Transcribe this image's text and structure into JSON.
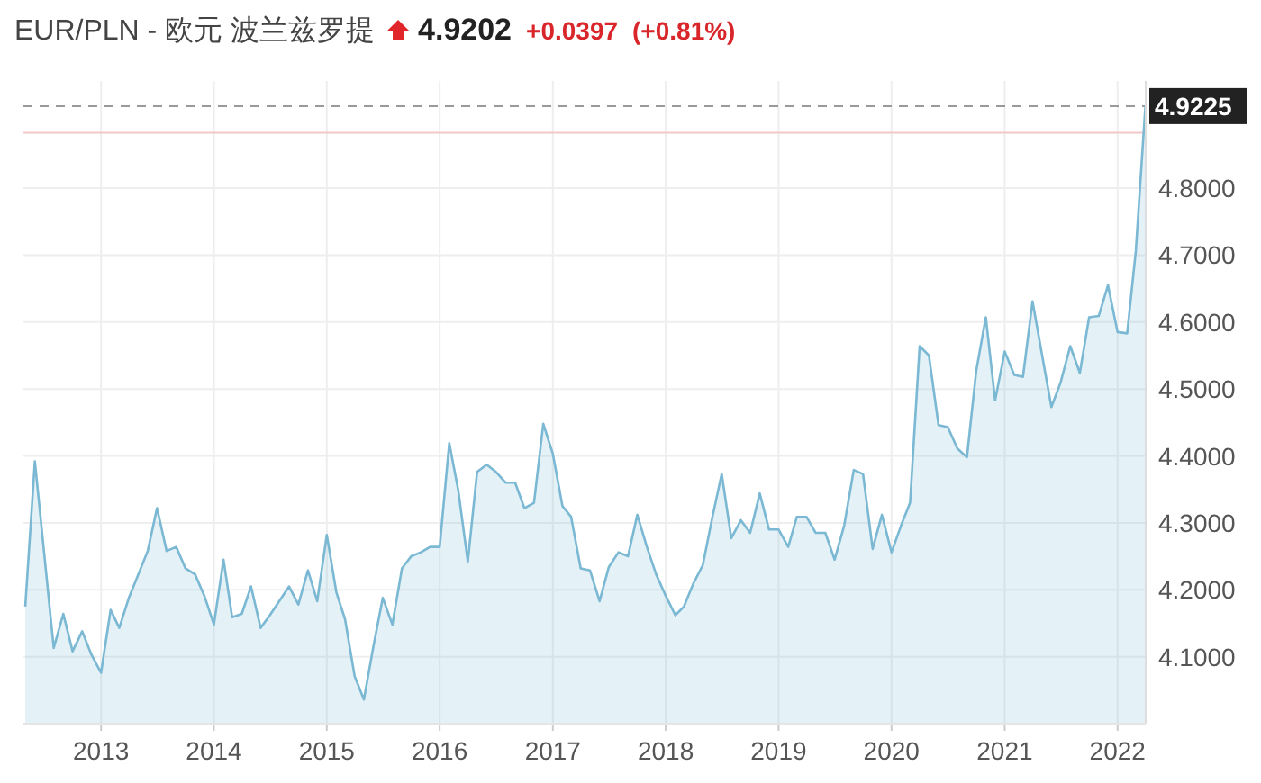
{
  "chart_data": {
    "type": "area",
    "title": "EUR/PLN - 欧元 波兰兹罗提",
    "annotations": [
      "4.9202",
      "+0.0397",
      "(+0.81%)"
    ],
    "x": [
      "2012-05",
      "2012-06",
      "2012-08",
      "2012-09",
      "2012-10",
      "2012-11",
      "2012-12",
      "2013-01",
      "2013-02",
      "2013-03",
      "2013-04",
      "2013-06",
      "2013-07",
      "2013-08",
      "2013-09",
      "2013-10",
      "2013-11",
      "2013-12",
      "2014-01",
      "2014-02",
      "2014-03",
      "2014-04",
      "2014-05",
      "2014-06",
      "2014-07",
      "2014-09",
      "2014-10",
      "2014-11",
      "2014-12",
      "2015-01",
      "2015-02",
      "2015-03",
      "2015-04",
      "2015-05",
      "2015-06",
      "2015-07",
      "2015-08",
      "2015-09",
      "2015-10",
      "2015-11",
      "2015-12",
      "2016-01",
      "2016-02",
      "2016-03",
      "2016-04",
      "2016-05",
      "2016-06",
      "2016-07",
      "2016-08",
      "2016-09",
      "2016-10",
      "2016-11",
      "2016-12",
      "2017-01",
      "2017-02",
      "2017-03",
      "2017-04",
      "2017-05",
      "2017-06",
      "2017-07",
      "2017-08",
      "2017-09",
      "2017-10",
      "2017-11",
      "2017-12",
      "2018-01",
      "2018-02",
      "2018-03",
      "2018-04",
      "2018-05",
      "2018-06",
      "2018-07",
      "2018-08",
      "2018-09",
      "2018-10",
      "2018-11",
      "2018-12",
      "2019-01",
      "2019-02",
      "2019-03",
      "2019-04",
      "2019-05",
      "2019-06",
      "2019-07",
      "2019-08",
      "2019-09",
      "2019-10",
      "2019-11",
      "2019-12",
      "2020-01",
      "2020-02",
      "2020-03",
      "2020-04",
      "2020-05",
      "2020-06",
      "2020-07",
      "2020-08",
      "2020-09",
      "2020-10",
      "2020-11",
      "2020-12",
      "2021-01",
      "2021-02",
      "2021-03",
      "2021-04",
      "2021-05",
      "2021-06",
      "2021-07",
      "2021-08",
      "2021-09",
      "2021-10",
      "2021-11",
      "2021-12",
      "2022-01",
      "2022-02",
      "2022-03",
      "2022-04"
    ],
    "series": [
      {
        "color": "#7ab8d3",
        "values": [
          4.175,
          4.392,
          4.113,
          4.164,
          4.108,
          4.138,
          4.103,
          4.076,
          4.17,
          4.143,
          4.188,
          4.258,
          4.322,
          4.258,
          4.264,
          4.232,
          4.223,
          4.191,
          4.148,
          4.245,
          4.159,
          4.164,
          4.205,
          4.143,
          4.162,
          4.205,
          4.178,
          4.229,
          4.183,
          4.282,
          4.196,
          4.156,
          4.071,
          4.036,
          4.116,
          4.188,
          4.148,
          4.232,
          4.25,
          4.256,
          4.264,
          4.264,
          4.419,
          4.349,
          4.242,
          4.376,
          4.387,
          4.376,
          4.36,
          4.36,
          4.322,
          4.33,
          4.448,
          4.403,
          4.325,
          4.309,
          4.232,
          4.229,
          4.183,
          4.234,
          4.256,
          4.25,
          4.312,
          4.264,
          4.223,
          4.191,
          4.162,
          4.175,
          4.21,
          4.237,
          4.309,
          4.373,
          4.277,
          4.304,
          4.285,
          4.344,
          4.29,
          4.29,
          4.264,
          4.309,
          4.309,
          4.285,
          4.285,
          4.245,
          4.296,
          4.379,
          4.373,
          4.261,
          4.312,
          4.256,
          4.296,
          4.33,
          4.564,
          4.55,
          4.446,
          4.443,
          4.411,
          4.398,
          4.527,
          4.607,
          4.483,
          4.556,
          4.521,
          4.518,
          4.631,
          4.553,
          4.473,
          4.51,
          4.564,
          4.524,
          4.607,
          4.609,
          4.655,
          4.585,
          4.583,
          4.706,
          4.9225
        ]
      }
    ],
    "xlim": [
      "2012-04-25",
      "2022-04-02"
    ],
    "xticks": [
      "2013",
      "2014",
      "2015",
      "2016",
      "2017",
      "2018",
      "2019",
      "2020",
      "2021",
      "2022"
    ],
    "ylim": [
      4.0,
      4.96
    ],
    "yticks": [
      {
        "value": 4.1,
        "label": "4.1000"
      },
      {
        "value": 4.2,
        "label": "4.2000"
      },
      {
        "value": 4.3,
        "label": "4.3000"
      },
      {
        "value": 4.4,
        "label": "4.4000"
      },
      {
        "value": 4.5,
        "label": "4.5000"
      },
      {
        "value": 4.6,
        "label": "4.6000"
      },
      {
        "value": 4.7,
        "label": "4.7000"
      },
      {
        "value": 4.8,
        "label": "4.8000"
      }
    ],
    "ref_lines": [
      {
        "axis": "y",
        "value": 4.9225,
        "label": "4.9225",
        "color": "#999999",
        "line_style": "dashed"
      },
      {
        "axis": "y",
        "value": 4.8828,
        "color": "#f4c7c7",
        "line_style": "solid"
      }
    ],
    "grid": true
  }
}
